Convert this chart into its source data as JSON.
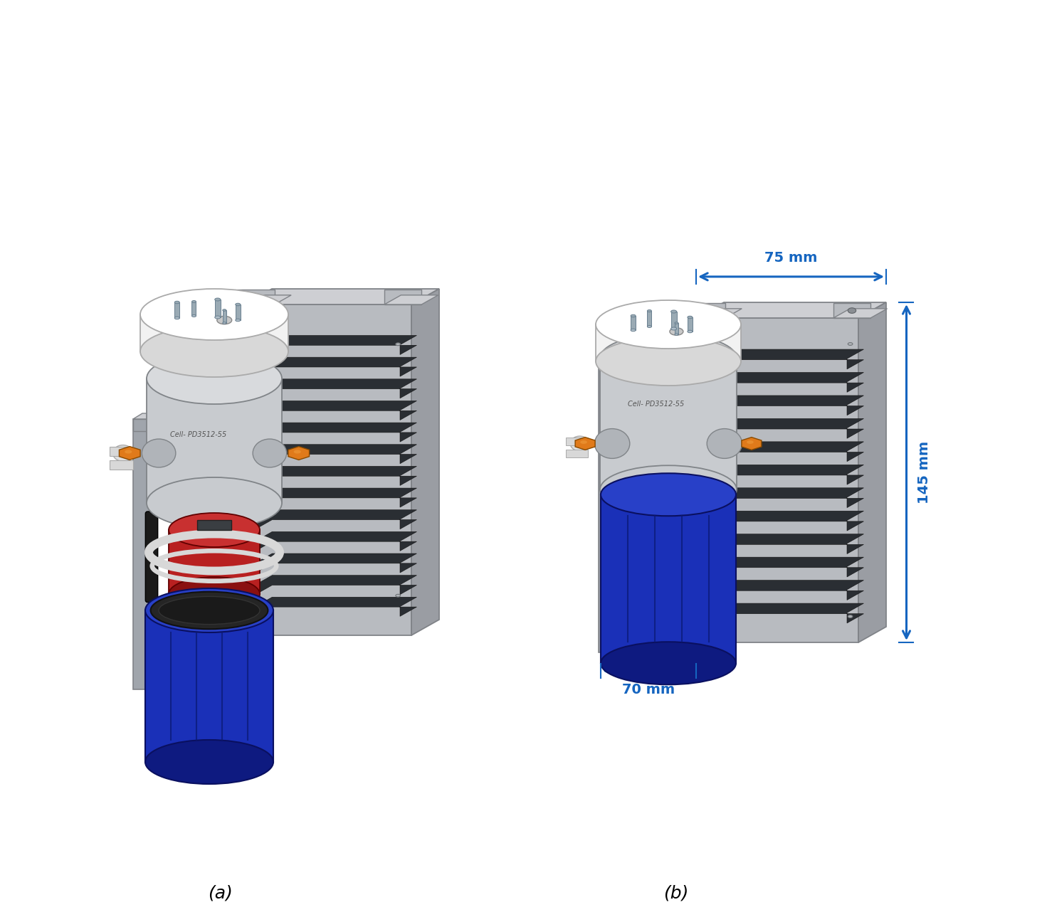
{
  "figure_width": 14.71,
  "figure_height": 12.96,
  "dpi": 100,
  "background_color": "#ffffff",
  "label_a": "(a)",
  "label_b": "(b)",
  "label_fontsize": 18,
  "label_fontstyle": "italic",
  "annotation_color": "#1565C0",
  "annotation_75mm": "75 mm",
  "annotation_145mm": "145 mm",
  "annotation_70mm": "70 mm",
  "annotation_fontsize": 14,
  "gray_panel_face": "#b8bbc0",
  "gray_panel_top": "#cecfd3",
  "gray_panel_right": "#9a9da3",
  "gray_panel_edge": "#808388",
  "vent_dark": "#2a2e33",
  "white_cap": "#f2f2f2",
  "white_cap_dark": "#d8d8d8",
  "pump_gray": "#c8cbcf",
  "pump_gray_top": "#d8dadd",
  "pump_gray_bot": "#aaadB2",
  "orange_knob": "#e07a1a",
  "red_body": "#b82020",
  "blue_vessel": "#1a30b8",
  "blue_vessel_top": "#2840c8",
  "blue_vessel_bot": "#0e1a80",
  "port_gray": "#9aaab4",
  "black_handle": "#1a1a1a",
  "bracket_gray": "#a0a5ac",
  "white_ring": "#d8d8d8"
}
